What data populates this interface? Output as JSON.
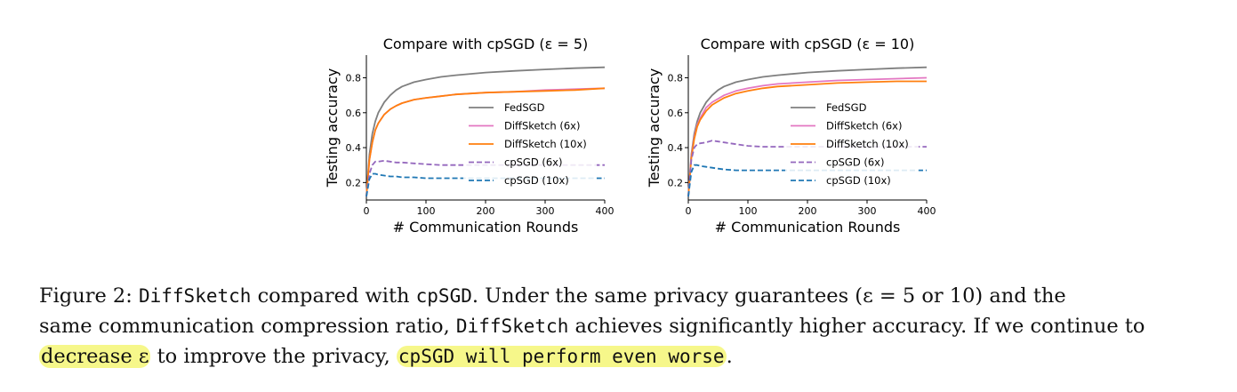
{
  "chart_data": [
    {
      "type": "line",
      "title": "Compare with cpSGD (ε = 5)",
      "xlabel": "# Communication Rounds",
      "ylabel": "Testing accuracy",
      "xlim": [
        0,
        400
      ],
      "ylim": [
        0.1,
        0.93
      ],
      "xticks": [
        0,
        100,
        200,
        300,
        400
      ],
      "yticks": [
        0.2,
        0.4,
        0.6,
        0.8
      ],
      "legend_position": "center-right",
      "x": [
        0,
        5,
        10,
        15,
        20,
        30,
        40,
        50,
        60,
        80,
        100,
        125,
        150,
        200,
        250,
        300,
        350,
        400
      ],
      "series": [
        {
          "name": "FedSGD",
          "color": "#7f7f7f",
          "dash": "solid",
          "values": [
            0.12,
            0.36,
            0.48,
            0.55,
            0.6,
            0.66,
            0.7,
            0.73,
            0.75,
            0.775,
            0.79,
            0.805,
            0.815,
            0.83,
            0.84,
            0.848,
            0.855,
            0.86
          ]
        },
        {
          "name": "DiffSketch (6x)",
          "color": "#e377c2",
          "dash": "solid",
          "values": [
            0.12,
            0.33,
            0.43,
            0.5,
            0.54,
            0.59,
            0.62,
            0.64,
            0.655,
            0.675,
            0.685,
            0.695,
            0.705,
            0.715,
            0.72,
            0.73,
            0.735,
            0.74
          ]
        },
        {
          "name": "DiffSketch (10x)",
          "color": "#ff7f0e",
          "dash": "solid",
          "values": [
            0.12,
            0.33,
            0.43,
            0.5,
            0.54,
            0.59,
            0.62,
            0.64,
            0.655,
            0.675,
            0.685,
            0.695,
            0.705,
            0.715,
            0.72,
            0.725,
            0.73,
            0.74
          ]
        },
        {
          "name": "cpSGD (6x)",
          "color": "#9467bd",
          "dash": "dashed",
          "values": [
            0.12,
            0.25,
            0.3,
            0.32,
            0.32,
            0.325,
            0.32,
            0.315,
            0.315,
            0.31,
            0.305,
            0.3,
            0.3,
            0.3,
            0.3,
            0.3,
            0.3,
            0.3
          ]
        },
        {
          "name": "cpSGD (10x)",
          "color": "#1f77b4",
          "dash": "dashed",
          "values": [
            0.12,
            0.22,
            0.25,
            0.25,
            0.245,
            0.24,
            0.235,
            0.235,
            0.23,
            0.23,
            0.225,
            0.225,
            0.225,
            0.225,
            0.225,
            0.225,
            0.225,
            0.225
          ]
        }
      ]
    },
    {
      "type": "line",
      "title": "Compare with cpSGD (ε = 10)",
      "xlabel": "# Communication Rounds",
      "ylabel": "Testing accuracy",
      "xlim": [
        0,
        400
      ],
      "ylim": [
        0.1,
        0.93
      ],
      "xticks": [
        0,
        100,
        200,
        300,
        400
      ],
      "yticks": [
        0.2,
        0.4,
        0.6,
        0.8
      ],
      "legend_position": "center-right",
      "x": [
        0,
        5,
        10,
        15,
        20,
        30,
        40,
        50,
        60,
        80,
        100,
        125,
        150,
        200,
        250,
        300,
        350,
        400
      ],
      "series": [
        {
          "name": "FedSGD",
          "color": "#7f7f7f",
          "dash": "solid",
          "values": [
            0.12,
            0.36,
            0.48,
            0.55,
            0.6,
            0.66,
            0.7,
            0.73,
            0.75,
            0.775,
            0.79,
            0.805,
            0.815,
            0.83,
            0.84,
            0.848,
            0.855,
            0.86
          ]
        },
        {
          "name": "DiffSketch (6x)",
          "color": "#e377c2",
          "dash": "solid",
          "values": [
            0.12,
            0.35,
            0.46,
            0.53,
            0.57,
            0.63,
            0.66,
            0.68,
            0.7,
            0.725,
            0.74,
            0.755,
            0.765,
            0.775,
            0.785,
            0.79,
            0.795,
            0.8
          ]
        },
        {
          "name": "DiffSketch (10x)",
          "color": "#ff7f0e",
          "dash": "solid",
          "values": [
            0.12,
            0.34,
            0.45,
            0.52,
            0.56,
            0.61,
            0.645,
            0.665,
            0.685,
            0.71,
            0.725,
            0.74,
            0.75,
            0.76,
            0.77,
            0.775,
            0.78,
            0.78
          ]
        },
        {
          "name": "cpSGD (6x)",
          "color": "#9467bd",
          "dash": "dashed",
          "values": [
            0.12,
            0.33,
            0.4,
            0.42,
            0.425,
            0.43,
            0.44,
            0.435,
            0.43,
            0.42,
            0.41,
            0.405,
            0.405,
            0.405,
            0.405,
            0.405,
            0.405,
            0.405
          ]
        },
        {
          "name": "cpSGD (10x)",
          "color": "#1f77b4",
          "dash": "dashed",
          "values": [
            0.12,
            0.26,
            0.3,
            0.3,
            0.295,
            0.29,
            0.285,
            0.28,
            0.275,
            0.27,
            0.27,
            0.27,
            0.27,
            0.27,
            0.27,
            0.27,
            0.27,
            0.27
          ]
        }
      ]
    }
  ],
  "caption": {
    "line1_a": "Figure 2: ",
    "line1_b": "DiffSketch",
    "line1_c": " compared with ",
    "line1_d": "cpSGD",
    "line1_e": ". Under the same privacy guarantees (ε = 5 or 10) and the",
    "line2_a": "same communication compression ratio, ",
    "line2_b": "DiffSketch",
    "line2_c": " achieves significantly higher accuracy. If we continue to",
    "line3_a": "decrease ε",
    "line3_b": " to improve the privacy, ",
    "line3_c": "cpSGD will perform even worse",
    "line3_d": "."
  },
  "colors": {
    "highlight": "#f6f78a"
  }
}
